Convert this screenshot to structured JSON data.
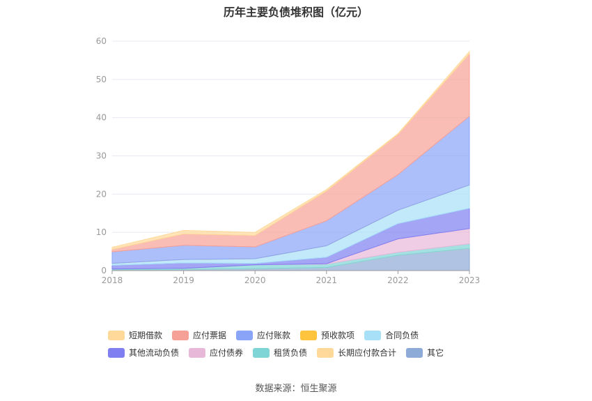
{
  "title": "历年主要负债堆积图（亿元）",
  "source": "数据来源：恒生聚源",
  "chart_data": {
    "type": "area",
    "stacked": true,
    "x": [
      "2018",
      "2019",
      "2020",
      "2021",
      "2022",
      "2023"
    ],
    "ylim": [
      0,
      60
    ],
    "yticks": [
      0,
      10,
      20,
      30,
      40,
      50,
      60
    ],
    "grid": true,
    "legend_position": "bottom",
    "series": [
      {
        "name": "其它",
        "color": "#8eaad6",
        "values": [
          0.2,
          0.3,
          0.5,
          0.8,
          4.0,
          5.8
        ]
      },
      {
        "name": "长期应付款合计",
        "color": "#ffd99a",
        "values": [
          0.0,
          0.0,
          0.0,
          0.0,
          0.0,
          0.0
        ]
      },
      {
        "name": "租赁负债",
        "color": "#7fd4d6",
        "values": [
          0.2,
          0.3,
          1.0,
          0.9,
          0.8,
          1.2
        ]
      },
      {
        "name": "应付债券",
        "color": "#e8b8d8",
        "values": [
          0.0,
          0.0,
          0.0,
          0.1,
          3.5,
          4.0
        ]
      },
      {
        "name": "其他流动负债",
        "color": "#7f7ff2",
        "values": [
          1.0,
          1.4,
          0.4,
          1.7,
          4.0,
          5.3
        ]
      },
      {
        "name": "合同负债",
        "color": "#a8e0f8",
        "values": [
          0.5,
          0.9,
          1.2,
          3.0,
          3.5,
          6.1
        ]
      },
      {
        "name": "预收款项",
        "color": "#ffc43d",
        "values": [
          0.0,
          0.0,
          0.0,
          0.0,
          0.0,
          0.0
        ]
      },
      {
        "name": "应付账款",
        "color": "#8aa4f8",
        "values": [
          3.0,
          3.7,
          3.1,
          6.5,
          9.3,
          18.0
        ]
      },
      {
        "name": "应付票据",
        "color": "#f6a197",
        "values": [
          0.6,
          3.0,
          3.0,
          7.8,
          10.5,
          16.3
        ]
      },
      {
        "name": "短期借款",
        "color": "#ffd99a",
        "values": [
          0.6,
          0.9,
          0.8,
          0.4,
          0.2,
          0.6
        ]
      }
    ]
  },
  "legend": [
    {
      "label": "短期借款",
      "color": "#ffd99a"
    },
    {
      "label": "应付票据",
      "color": "#f6a197"
    },
    {
      "label": "应付账款",
      "color": "#8aa4f8"
    },
    {
      "label": "预收款项",
      "color": "#ffc43d"
    },
    {
      "label": "合同负债",
      "color": "#a8e0f8"
    },
    {
      "label": "其他流动负债",
      "color": "#7f7ff2"
    },
    {
      "label": "应付债券",
      "color": "#e8b8d8"
    },
    {
      "label": "租赁负债",
      "color": "#7fd4d6"
    },
    {
      "label": "长期应付款合计",
      "color": "#ffd99a"
    },
    {
      "label": "其它",
      "color": "#8eaad6"
    }
  ]
}
